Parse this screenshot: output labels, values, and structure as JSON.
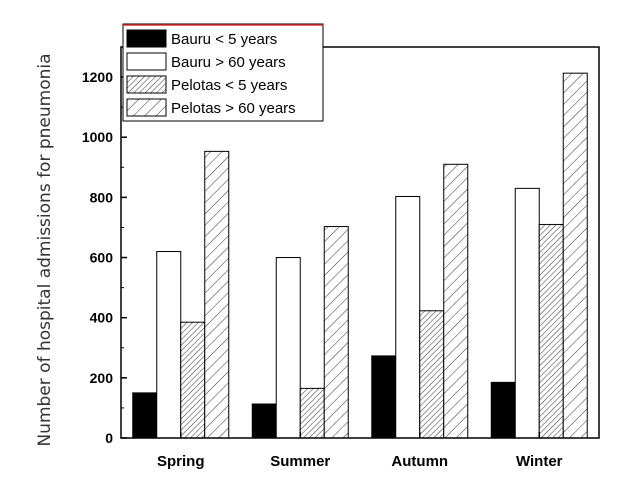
{
  "chart_data": {
    "type": "bar",
    "title": "",
    "xlabel": "",
    "ylabel": "Number of hospital admissions for pneumonia",
    "categories": [
      "Spring",
      "Summer",
      "Autumn",
      "Winter"
    ],
    "ylim": [
      0,
      1300
    ],
    "yticks": [
      0,
      200,
      400,
      600,
      800,
      1000,
      1200
    ],
    "grid": false,
    "legend_position": "top-left",
    "series": [
      {
        "name": "Bauru < 5 years",
        "values": [
          150,
          113,
          273,
          185
        ],
        "fill": "solid-black"
      },
      {
        "name": "Bauru > 60 years",
        "values": [
          620,
          600,
          803,
          830
        ],
        "fill": "white"
      },
      {
        "name": "Pelotas < 5 years",
        "values": [
          385,
          165,
          423,
          710
        ],
        "fill": "dense-hatch"
      },
      {
        "name": "Pelotas > 60 years",
        "values": [
          953,
          703,
          910,
          1213
        ],
        "fill": "sparse-hatch"
      }
    ]
  }
}
